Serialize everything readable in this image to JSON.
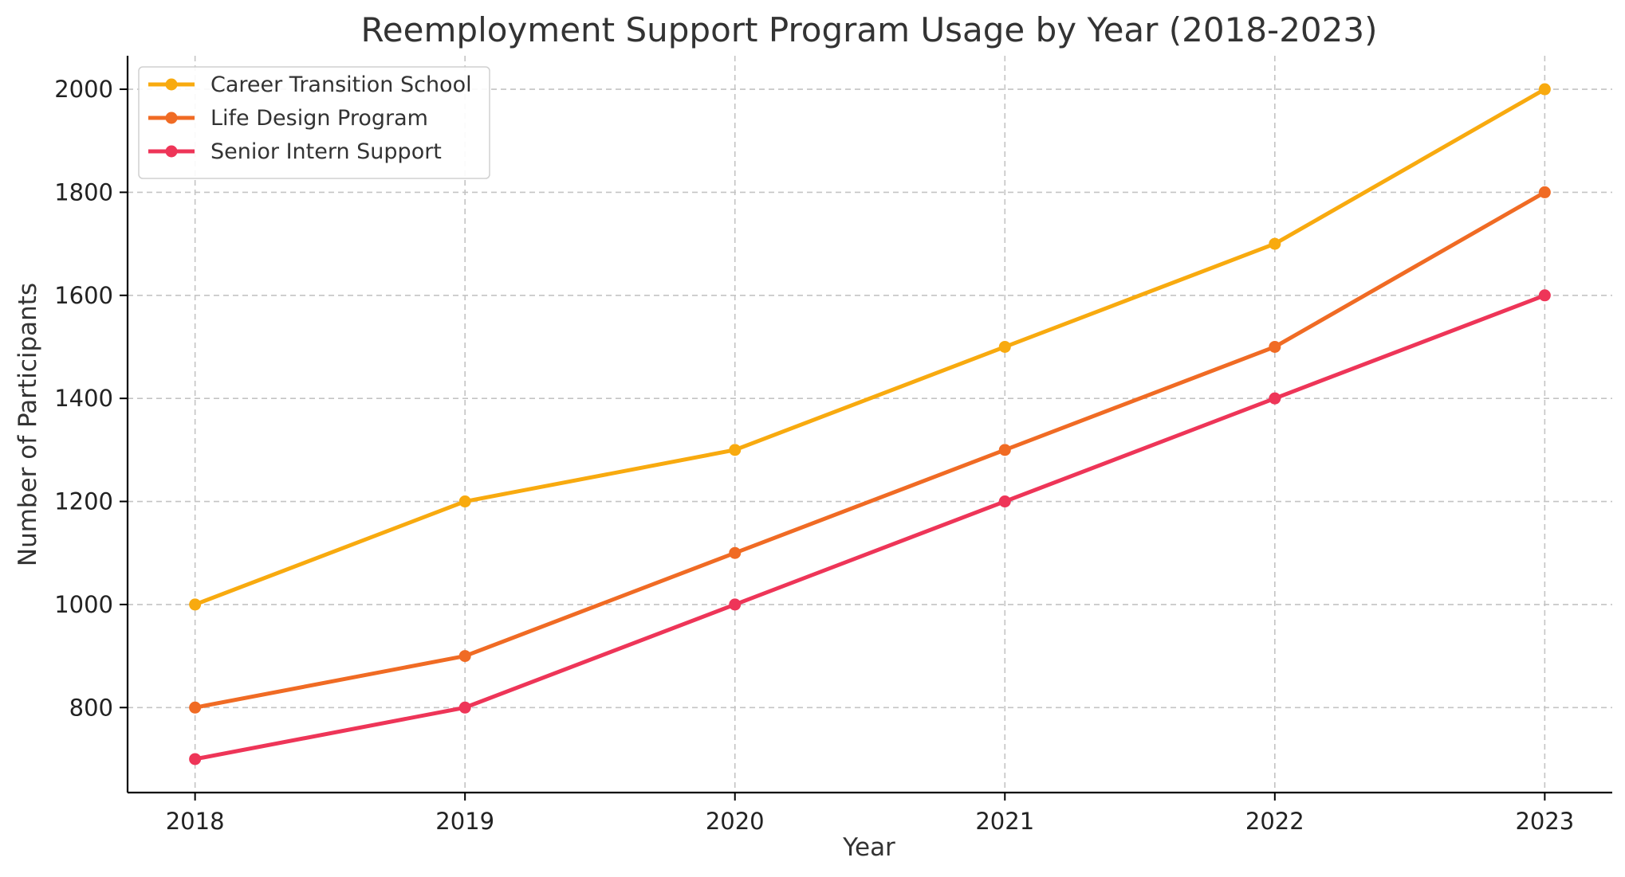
{
  "chart_data": {
    "type": "line",
    "title": "Reemployment Support Program Usage by Year (2018-2023)",
    "xlabel": "Year",
    "ylabel": "Number of Participants",
    "x": [
      2018,
      2019,
      2020,
      2021,
      2022,
      2023
    ],
    "x_tick_labels": [
      "2018",
      "2019",
      "2020",
      "2021",
      "2022",
      "2023"
    ],
    "y_ticks": [
      800,
      1000,
      1200,
      1400,
      1600,
      1800,
      2000
    ],
    "y_tick_labels": [
      "800",
      "1000",
      "1200",
      "1400",
      "1600",
      "1800",
      "2000"
    ],
    "xlim": [
      2017.75,
      2023.25
    ],
    "ylim": [
      635,
      2065
    ],
    "grid": true,
    "legend_position": "top-left",
    "series": [
      {
        "name": "Career Transition School",
        "color": "#F8AA0F",
        "values": [
          1000,
          1200,
          1300,
          1500,
          1700,
          2000
        ]
      },
      {
        "name": "Life Design Program",
        "color": "#F06B24",
        "values": [
          800,
          900,
          1100,
          1300,
          1500,
          1800
        ]
      },
      {
        "name": "Senior Intern Support",
        "color": "#EE3558",
        "values": [
          700,
          800,
          1000,
          1200,
          1400,
          1600
        ]
      }
    ]
  }
}
